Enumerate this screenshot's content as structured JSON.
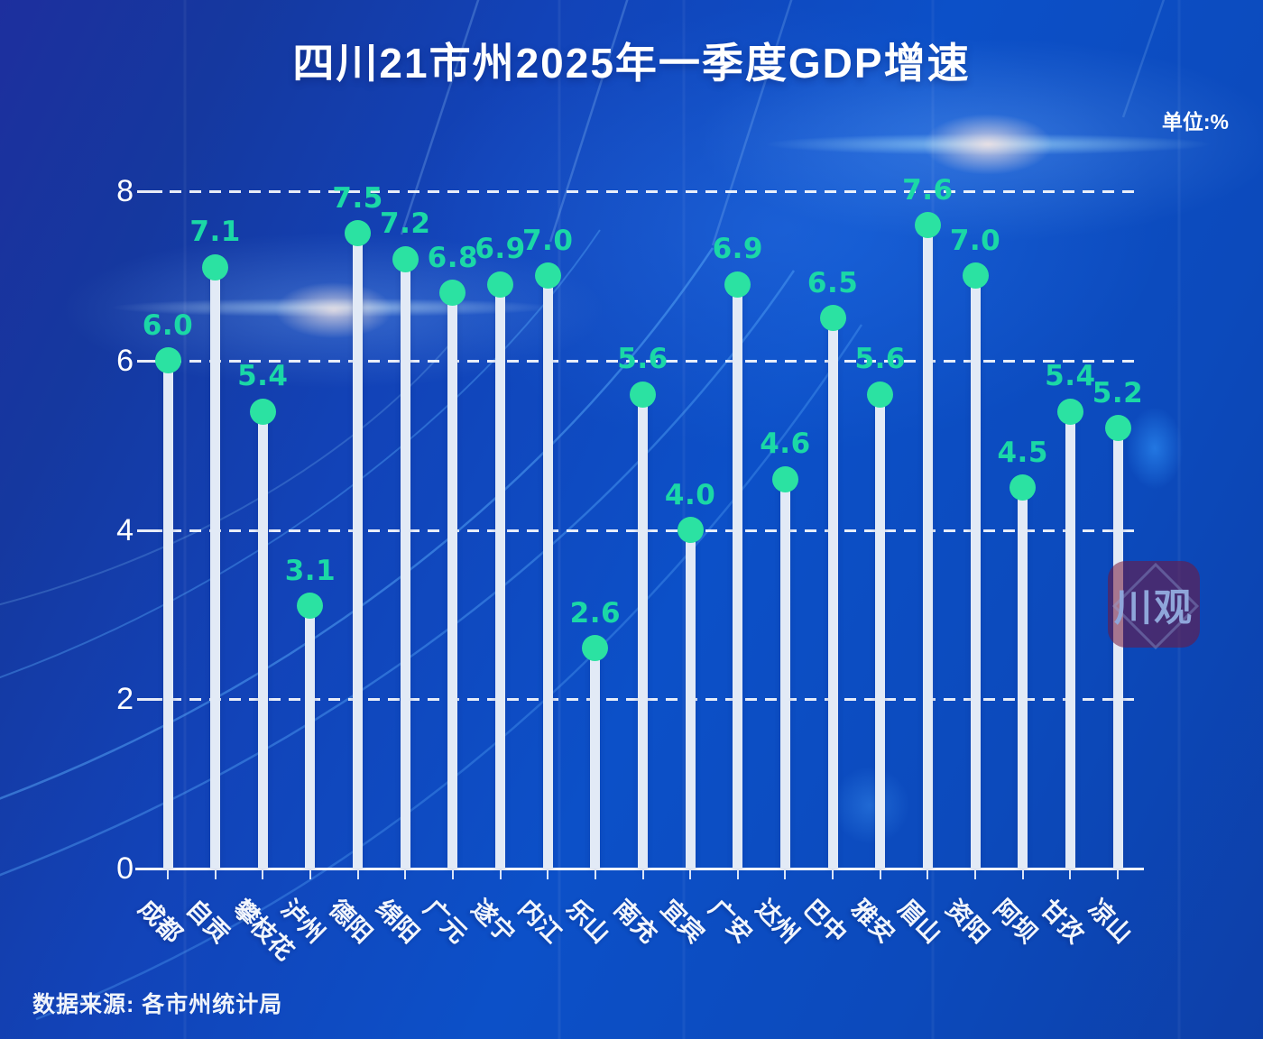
{
  "title": "四川21市州2025年一季度GDP增速",
  "unit_label": "单位:%",
  "source_label": "数据来源: 各市州统计局",
  "watermark_text": "川观",
  "colors": {
    "background_dark": "#1D2F9E",
    "background_bright": "#0C50C8",
    "bar": "#E2EAF6",
    "dot": "#2BE2A2",
    "value_label": "#1BD8A6",
    "axis_text": "#FFFFFF",
    "curve_accent": "#5FB4FF"
  },
  "chart_data": {
    "type": "bar",
    "variant": "lollipop",
    "title": "四川21市州2025年一季度GDP增速",
    "unit": "%",
    "categories": [
      "成都",
      "自贡",
      "攀枝花",
      "泸州",
      "德阳",
      "绵阳",
      "广元",
      "遂宁",
      "内江",
      "乐山",
      "南充",
      "宜宾",
      "广安",
      "达州",
      "巴中",
      "雅安",
      "眉山",
      "资阳",
      "阿坝",
      "甘孜",
      "凉山"
    ],
    "values": [
      6.0,
      7.1,
      5.4,
      3.1,
      7.5,
      7.2,
      6.8,
      6.9,
      7.0,
      2.6,
      5.6,
      4.0,
      6.9,
      4.6,
      6.5,
      5.6,
      7.6,
      7.0,
      4.5,
      5.4,
      5.2
    ],
    "ylim": [
      0,
      8
    ],
    "yticks": [
      0,
      2,
      4,
      6,
      8
    ],
    "grid": "horizontal-dashed",
    "legend": "none",
    "source": "数据来源: 各市州统计局"
  }
}
